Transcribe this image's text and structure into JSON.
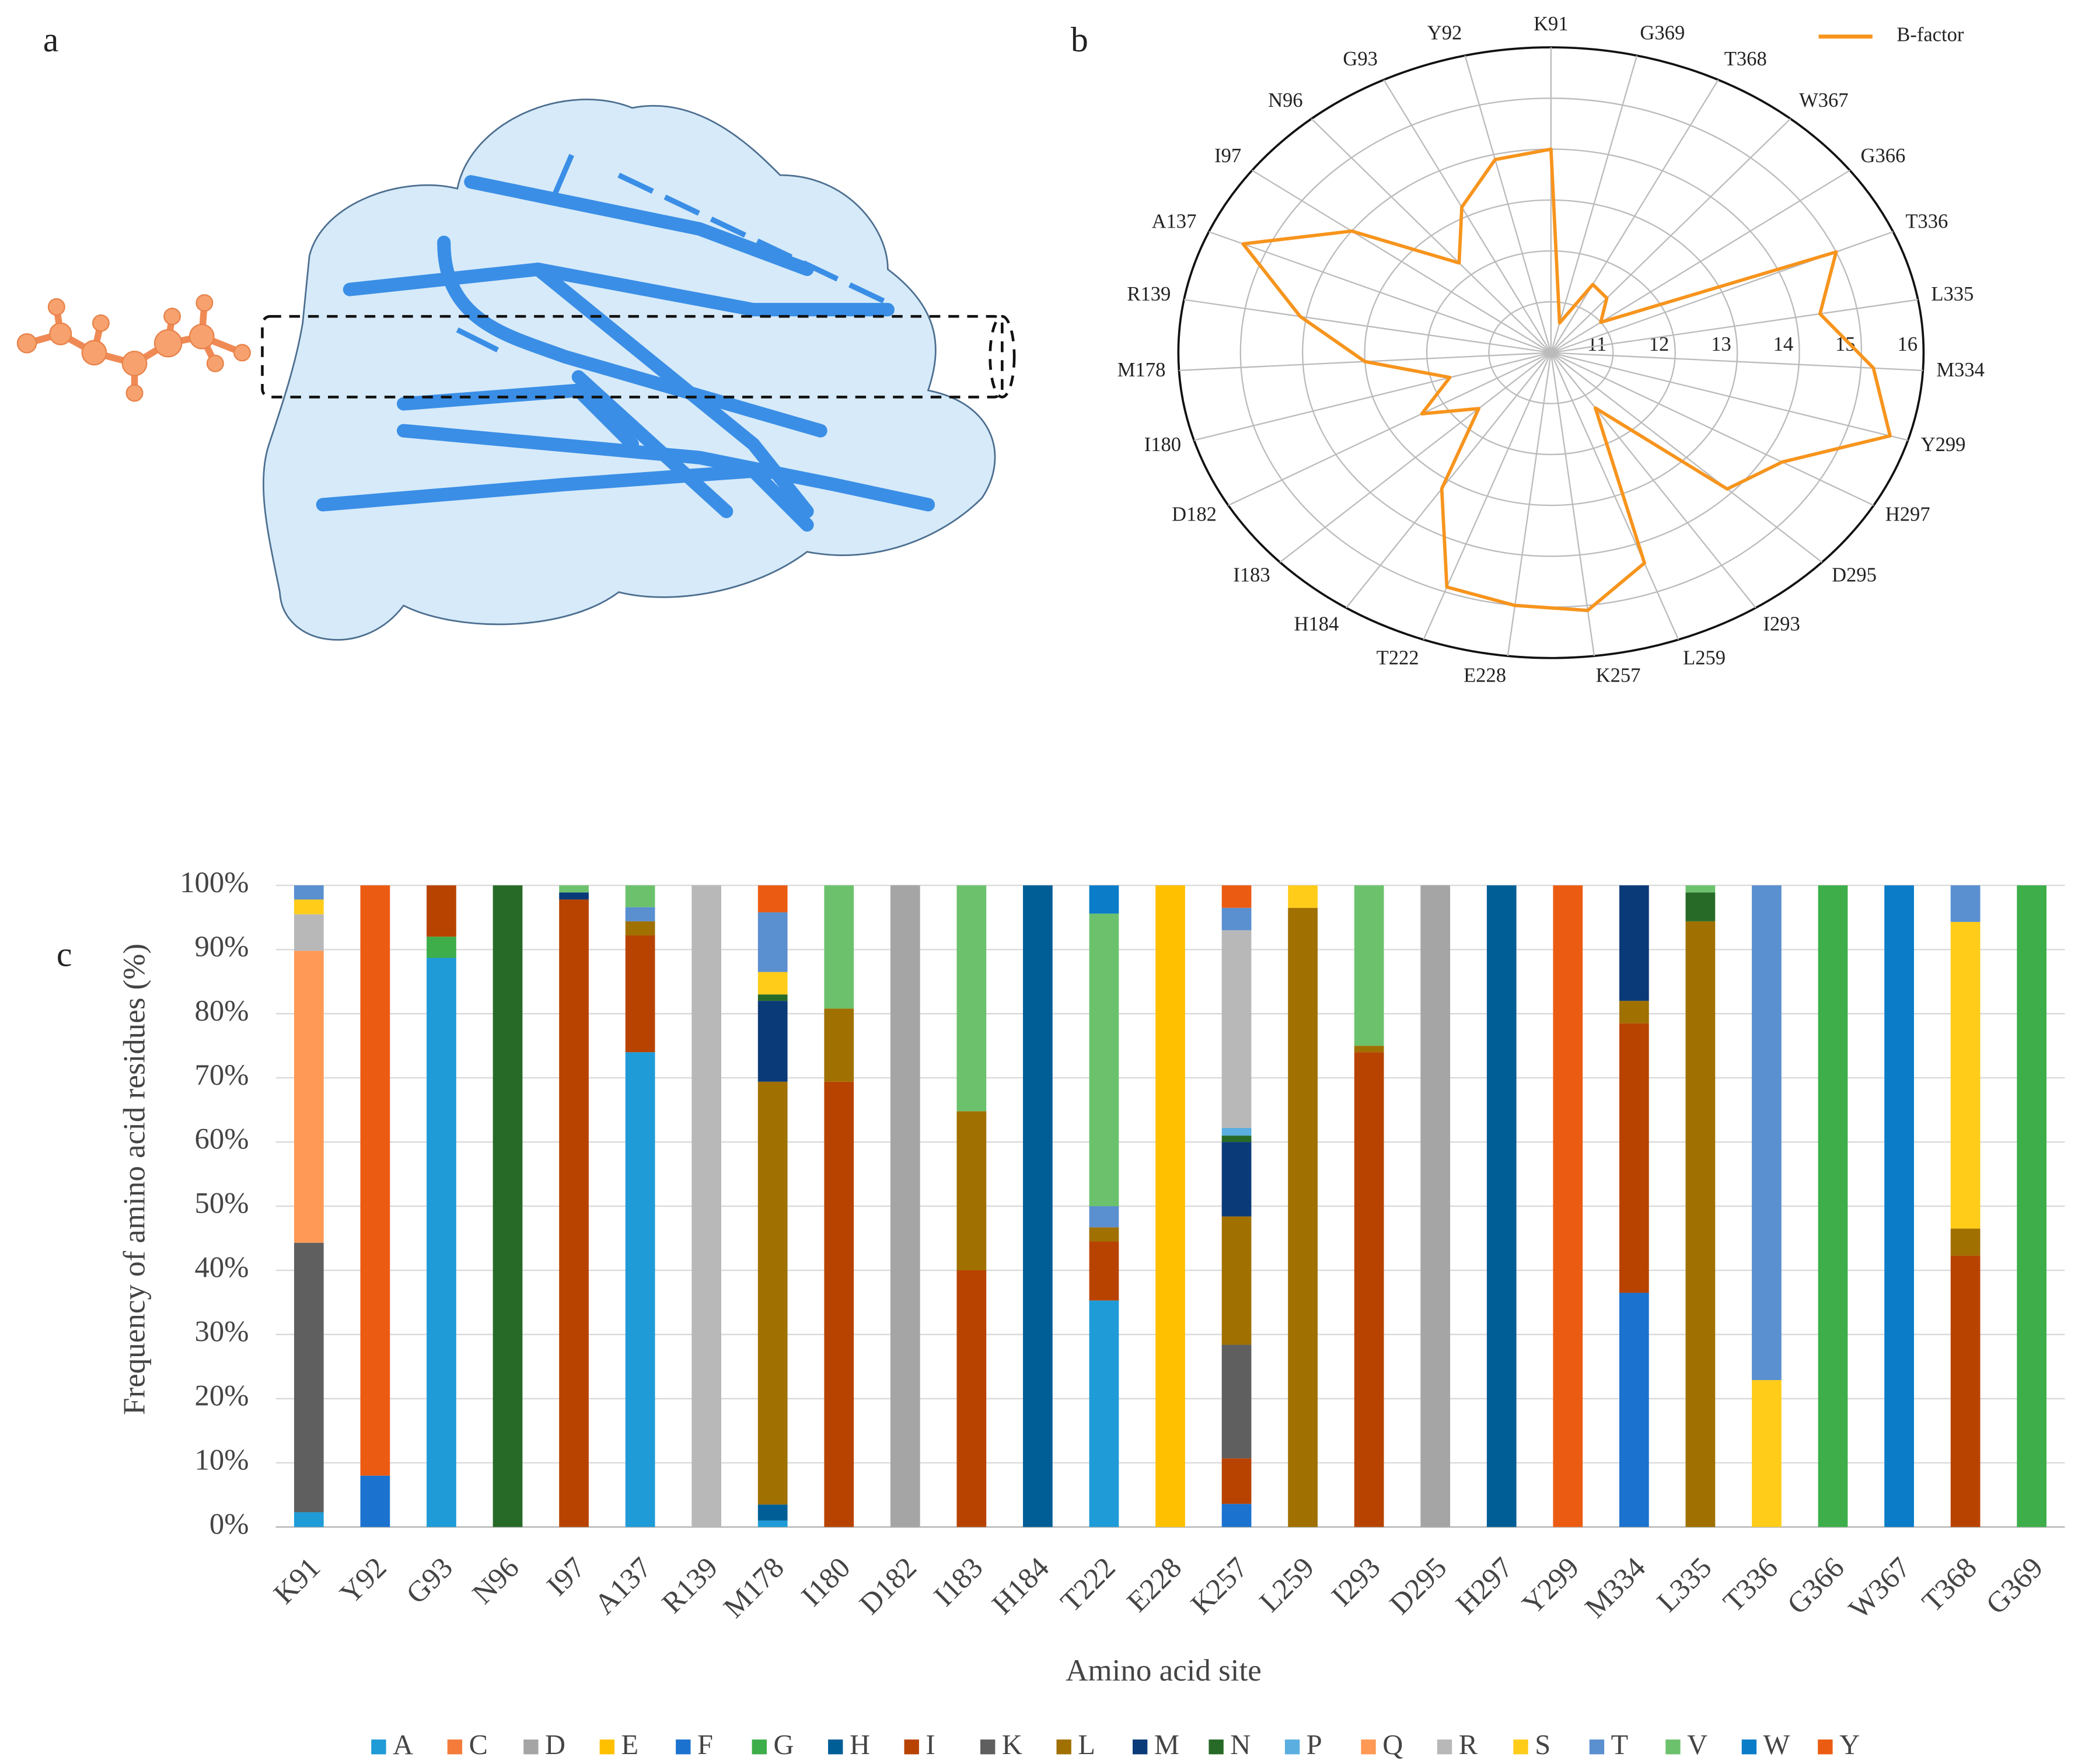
{
  "panel_labels": [
    "a",
    "b",
    "c"
  ],
  "chart_data": [
    {
      "type": "radar",
      "categories": [
        "K91",
        "Y92",
        "G93",
        "N96",
        "I97",
        "A137",
        "R139",
        "M178",
        "I180",
        "D182",
        "I183",
        "H184",
        "T222",
        "E228",
        "K257",
        "L259",
        "I293",
        "D295",
        "H297",
        "Y299",
        "M334",
        "L335",
        "T336",
        "G366",
        "W367",
        "T368",
        "G369"
      ],
      "series": [
        {
          "name": "B-factor",
          "color": "#f7941d",
          "values": [
            14.0,
            13.9,
            13.2,
            12.3,
            14.0,
            15.4,
            14.1,
            13.0,
            11.7,
            12.4,
            11.6,
            13.2,
            14.9,
            15.0,
            15.1,
            14.4,
            11.3,
            13.9,
            14.3,
            15.7,
            15.2,
            14.4,
            15.0,
            11.0,
            11.4,
            11.5,
            10.6
          ]
        }
      ],
      "rlim": [
        10,
        16
      ],
      "rticks": [
        11,
        12,
        13,
        14,
        15,
        16
      ],
      "grid": true,
      "legend": "upper right"
    },
    {
      "type": "stacked_bar",
      "categories": [
        "K91",
        "Y92",
        "G93",
        "N96",
        "I97",
        "A137",
        "R139",
        "M178",
        "I180",
        "D182",
        "I183",
        "H184",
        "T222",
        "E228",
        "K257",
        "L259",
        "I293",
        "D295",
        "H297",
        "Y299",
        "M334",
        "L335",
        "T336",
        "G366",
        "W367",
        "T368",
        "G369"
      ],
      "xlabel": "Amino acid site",
      "ylabel": "Frequency of amino acid residues (%)",
      "ylim": [
        0,
        100
      ],
      "yticks": [
        {
          "value": 0,
          "label": "0%"
        },
        {
          "value": 10,
          "label": "10%"
        },
        {
          "value": 20,
          "label": "20%"
        },
        {
          "value": 30,
          "label": "30%"
        },
        {
          "value": 40,
          "label": "40%"
        },
        {
          "value": 50,
          "label": "50%"
        },
        {
          "value": 60,
          "label": "60%"
        },
        {
          "value": 70,
          "label": "70%"
        },
        {
          "value": 80,
          "label": "80%"
        },
        {
          "value": 90,
          "label": "90%"
        },
        {
          "value": 100,
          "label": "100%"
        }
      ],
      "grid": true,
      "legend": "bottom",
      "series": [
        {
          "name": "A",
          "color": "#1f9bd7",
          "values": [
            2.3,
            null,
            88.7,
            null,
            null,
            74,
            null,
            1,
            null,
            null,
            null,
            null,
            35.3,
            null,
            null,
            null,
            null,
            null,
            null,
            null,
            null,
            null,
            null,
            null,
            null,
            null,
            null
          ]
        },
        {
          "name": "C",
          "color": "#f47b3a",
          "values": [
            null,
            null,
            null,
            null,
            null,
            null,
            null,
            null,
            null,
            null,
            null,
            null,
            null,
            null,
            null,
            null,
            null,
            null,
            null,
            null,
            null,
            null,
            null,
            null,
            null,
            null,
            null
          ]
        },
        {
          "name": "D",
          "color": "#a5a5a5",
          "values": [
            null,
            null,
            null,
            null,
            null,
            null,
            null,
            null,
            null,
            100,
            null,
            null,
            null,
            null,
            null,
            null,
            null,
            100,
            null,
            null,
            null,
            null,
            null,
            null,
            null,
            null,
            null
          ]
        },
        {
          "name": "E",
          "color": "#ffc000",
          "values": [
            null,
            null,
            null,
            null,
            null,
            null,
            null,
            null,
            null,
            null,
            null,
            null,
            null,
            100,
            null,
            null,
            null,
            null,
            null,
            null,
            null,
            null,
            null,
            null,
            null,
            null,
            null
          ]
        },
        {
          "name": "F",
          "color": "#1c72cf",
          "values": [
            null,
            8,
            null,
            null,
            null,
            null,
            null,
            null,
            null,
            null,
            null,
            null,
            null,
            null,
            3.6,
            null,
            null,
            null,
            null,
            null,
            36.5,
            null,
            null,
            null,
            null,
            null,
            null
          ]
        },
        {
          "name": "G",
          "color": "#3dae49",
          "values": [
            null,
            null,
            3.3,
            null,
            null,
            null,
            null,
            null,
            null,
            null,
            null,
            null,
            null,
            null,
            null,
            null,
            null,
            null,
            null,
            null,
            null,
            null,
            null,
            100,
            null,
            null,
            100
          ]
        },
        {
          "name": "H",
          "color": "#005e96",
          "values": [
            null,
            null,
            null,
            null,
            null,
            null,
            null,
            2.5,
            null,
            null,
            null,
            100,
            null,
            null,
            null,
            null,
            null,
            null,
            100,
            null,
            null,
            null,
            null,
            null,
            null,
            null,
            null
          ]
        },
        {
          "name": "I",
          "color": "#b84300",
          "values": [
            null,
            null,
            8,
            null,
            97.8,
            18.2,
            null,
            null,
            69.4,
            null,
            40,
            null,
            9.2,
            null,
            7.1,
            null,
            74,
            null,
            null,
            null,
            42,
            null,
            null,
            null,
            null,
            42.3,
            null
          ]
        },
        {
          "name": "K",
          "color": "#5f5f5f",
          "values": [
            42,
            null,
            null,
            null,
            null,
            null,
            null,
            null,
            null,
            null,
            null,
            null,
            null,
            null,
            17.7,
            null,
            null,
            null,
            null,
            null,
            null,
            null,
            null,
            null,
            null,
            null,
            null
          ]
        },
        {
          "name": "L",
          "color": "#a07000",
          "values": [
            null,
            null,
            null,
            null,
            null,
            2.2,
            null,
            65.9,
            11.4,
            null,
            24.8,
            null,
            2.2,
            null,
            20,
            96.5,
            1,
            null,
            null,
            null,
            3.5,
            94.4,
            null,
            null,
            null,
            4.2,
            null
          ]
        },
        {
          "name": "M",
          "color": "#0b3a78",
          "values": [
            null,
            null,
            null,
            null,
            1.1,
            null,
            null,
            12.6,
            null,
            null,
            null,
            null,
            null,
            null,
            11.6,
            null,
            null,
            null,
            null,
            null,
            18,
            null,
            null,
            null,
            null,
            null,
            null
          ]
        },
        {
          "name": "N",
          "color": "#276a27",
          "values": [
            null,
            null,
            null,
            100,
            null,
            null,
            null,
            1,
            null,
            null,
            null,
            null,
            null,
            null,
            1,
            null,
            null,
            null,
            null,
            null,
            null,
            4.5,
            null,
            null,
            null,
            null,
            null
          ]
        },
        {
          "name": "P",
          "color": "#5aaee0",
          "values": [
            null,
            null,
            null,
            null,
            null,
            null,
            null,
            null,
            null,
            null,
            null,
            null,
            null,
            null,
            1.2,
            null,
            null,
            null,
            null,
            null,
            null,
            null,
            null,
            null,
            null,
            null,
            null
          ]
        },
        {
          "name": "Q",
          "color": "#ff9955",
          "values": [
            45.5,
            null,
            null,
            null,
            null,
            null,
            null,
            null,
            null,
            null,
            null,
            null,
            null,
            null,
            null,
            null,
            null,
            null,
            null,
            null,
            null,
            null,
            null,
            null,
            null,
            null,
            null
          ]
        },
        {
          "name": "R",
          "color": "#b8b8b8",
          "values": [
            5.7,
            null,
            null,
            null,
            null,
            null,
            100,
            null,
            null,
            null,
            null,
            null,
            null,
            null,
            30.8,
            null,
            null,
            null,
            null,
            null,
            null,
            null,
            null,
            null,
            null,
            null,
            null
          ]
        },
        {
          "name": "S",
          "color": "#ffcc1a",
          "values": [
            2.3,
            null,
            null,
            null,
            null,
            null,
            null,
            3.5,
            null,
            null,
            null,
            null,
            null,
            null,
            null,
            3.5,
            null,
            null,
            null,
            null,
            null,
            null,
            22.9,
            null,
            null,
            47.8,
            null
          ]
        },
        {
          "name": "T",
          "color": "#5a8fd0",
          "values": [
            2.2,
            null,
            null,
            null,
            null,
            2.2,
            null,
            9.3,
            null,
            null,
            null,
            null,
            3.3,
            null,
            3.5,
            null,
            null,
            null,
            null,
            null,
            null,
            null,
            77.1,
            null,
            null,
            5.7,
            null
          ]
        },
        {
          "name": "V",
          "color": "#6cc26c",
          "values": [
            null,
            null,
            null,
            null,
            1.1,
            3.4,
            null,
            null,
            19.2,
            null,
            35.2,
            null,
            45.6,
            null,
            null,
            null,
            25,
            null,
            null,
            null,
            null,
            1.1,
            null,
            null,
            null,
            null,
            null
          ]
        },
        {
          "name": "W",
          "color": "#0a7cc8",
          "values": [
            null,
            null,
            null,
            null,
            null,
            null,
            null,
            null,
            null,
            null,
            null,
            null,
            4.4,
            null,
            null,
            null,
            null,
            null,
            null,
            null,
            null,
            null,
            null,
            null,
            100,
            null,
            null
          ]
        },
        {
          "name": "Y",
          "color": "#ec5b12",
          "values": [
            null,
            92,
            null,
            null,
            null,
            null,
            null,
            4.2,
            null,
            null,
            null,
            null,
            null,
            null,
            3.5,
            null,
            null,
            null,
            null,
            100,
            null,
            null,
            null,
            null,
            null,
            null,
            null
          ]
        }
      ]
    }
  ]
}
